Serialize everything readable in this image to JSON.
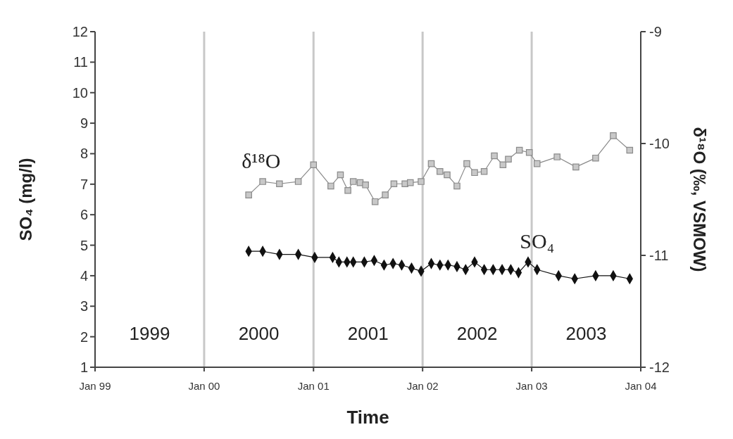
{
  "chart_data": {
    "type": "line",
    "xlabel": "Time",
    "ylabel": "SO₄ (mg/l)",
    "y2label": "δ¹⁸O (‰, VSMOW)",
    "xlim": [
      "1999-01",
      "2004-01"
    ],
    "xticks": [
      {
        "value": "1999-01",
        "label": "Jan 99"
      },
      {
        "value": "2000-01",
        "label": "Jan 00"
      },
      {
        "value": "2001-01",
        "label": "Jan 01"
      },
      {
        "value": "2002-01",
        "label": "Jan 02"
      },
      {
        "value": "2003-01",
        "label": "Jan 03"
      },
      {
        "value": "2004-01",
        "label": "Jan 04"
      }
    ],
    "ylim": [
      1,
      12
    ],
    "yticks": [
      1,
      2,
      3,
      4,
      5,
      6,
      7,
      8,
      9,
      10,
      11,
      12
    ],
    "y2lim": [
      -12,
      -9
    ],
    "y2ticks": [
      -12,
      -11,
      -10,
      -9
    ],
    "grid": "x",
    "series": [
      {
        "name": "δ¹⁸O",
        "axis": "y2",
        "color": "#8a8a8a",
        "marker": "square",
        "x": [
          "2000-05-29",
          "2000-07-15",
          "2000-09-09",
          "2000-11-11",
          "2001-01-01",
          "2001-02-28",
          "2001-04-01",
          "2001-04-26",
          "2001-05-14",
          "2001-06-06",
          "2001-06-24",
          "2001-07-26",
          "2001-08-29",
          "2001-09-27",
          "2001-11-03",
          "2001-11-21",
          "2001-12-27",
          "2002-01-30",
          "2002-02-28",
          "2002-03-24",
          "2002-04-26",
          "2002-05-29",
          "2002-06-24",
          "2002-07-26",
          "2002-08-29",
          "2002-09-27",
          "2002-10-15",
          "2002-11-21",
          "2002-12-24",
          "2003-01-19",
          "2003-03-27",
          "2003-05-29",
          "2003-08-03",
          "2003-10-01",
          "2003-11-25"
        ],
        "values": [
          -10.46,
          -10.34,
          -10.36,
          -10.34,
          -10.19,
          -10.38,
          -10.28,
          -10.42,
          -10.34,
          -10.35,
          -10.37,
          -10.52,
          -10.46,
          -10.36,
          -10.36,
          -10.35,
          -10.34,
          -10.18,
          -10.25,
          -10.28,
          -10.38,
          -10.18,
          -10.26,
          -10.25,
          -10.11,
          -10.19,
          -10.14,
          -10.06,
          -10.08,
          -10.18,
          -10.12,
          -10.21,
          -10.13,
          -9.93,
          -10.06
        ]
      },
      {
        "name": "SO₄",
        "color": "#111111",
        "marker": "diamond",
        "x": [
          "2000-05-29",
          "2000-07-15",
          "2000-09-09",
          "2000-11-11",
          "2001-01-05",
          "2001-03-06",
          "2001-03-27",
          "2001-04-23",
          "2001-05-14",
          "2001-06-20",
          "2001-07-23",
          "2001-08-25",
          "2001-09-24",
          "2001-10-23",
          "2001-11-25",
          "2001-12-27",
          "2002-01-30",
          "2002-02-28",
          "2002-03-27",
          "2002-04-26",
          "2002-05-25",
          "2002-06-24",
          "2002-07-26",
          "2002-08-25",
          "2002-09-24",
          "2002-10-23",
          "2002-11-18",
          "2002-12-20",
          "2003-01-19",
          "2003-04-01",
          "2003-05-25",
          "2003-08-03",
          "2003-10-01",
          "2003-11-25"
        ],
        "values": [
          4.8,
          4.8,
          4.7,
          4.7,
          4.6,
          4.6,
          4.45,
          4.45,
          4.45,
          4.45,
          4.5,
          4.35,
          4.4,
          4.35,
          4.25,
          4.15,
          4.4,
          4.35,
          4.35,
          4.3,
          4.2,
          4.45,
          4.2,
          4.2,
          4.2,
          4.2,
          4.1,
          4.45,
          4.2,
          4.0,
          3.9,
          4.0,
          4.0,
          3.9
        ]
      }
    ],
    "annotations": [
      "1999",
      "2000",
      "2001",
      "2002",
      "2003"
    ]
  }
}
